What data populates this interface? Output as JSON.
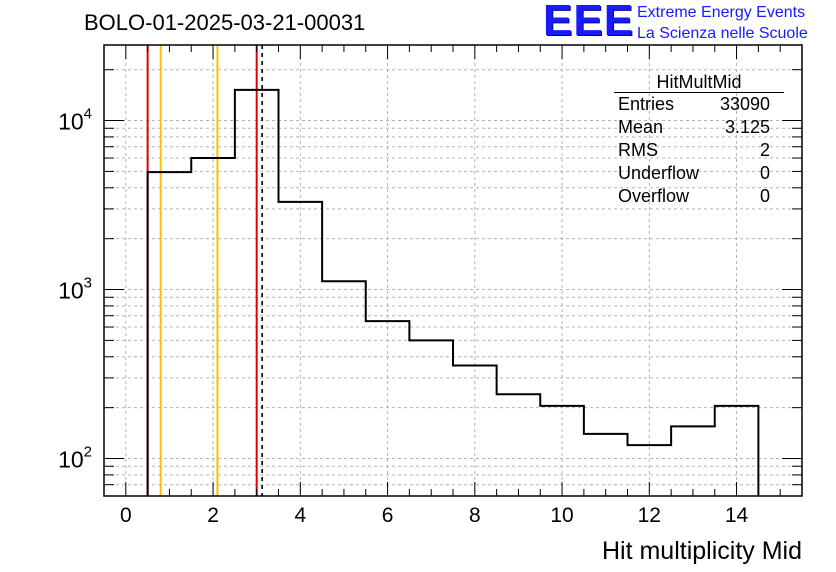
{
  "header": {
    "run_title": "BOLO-01-2025-03-21-00031"
  },
  "logo": {
    "mark": "EEE",
    "line1": "Extreme Energy Events",
    "line2": "La Scienza nelle Scuole",
    "color": "#1a1aff"
  },
  "stats": {
    "title": "HitMultMid",
    "rows": [
      {
        "label": "Entries",
        "value": "33090"
      },
      {
        "label": "Mean",
        "value": "3.125"
      },
      {
        "label": "RMS",
        "value": "2"
      },
      {
        "label": "Underflow",
        "value": "0"
      },
      {
        "label": "Overflow",
        "value": "0"
      }
    ]
  },
  "chart_data": {
    "type": "bar",
    "histogram": true,
    "title": "BOLO-01-2025-03-21-00031",
    "xlabel": "Hit multiplicity Mid",
    "ylabel": "",
    "xlim": [
      -0.5,
      15.5
    ],
    "ylim_log": [
      60,
      28000
    ],
    "yscale": "log",
    "grid": true,
    "bin_edges": [
      0.5,
      1.5,
      2.5,
      3.5,
      4.5,
      5.5,
      6.5,
      7.5,
      8.5,
      9.5,
      10.5,
      11.5,
      12.5,
      13.5,
      14.5
    ],
    "values": [
      4950,
      6000,
      15200,
      3300,
      1120,
      650,
      500,
      355,
      240,
      205,
      140,
      120,
      155,
      205
    ],
    "x_ticks": [
      0,
      2,
      4,
      6,
      8,
      10,
      12,
      14
    ],
    "y_ticks": [
      {
        "value": 100,
        "base": "10",
        "exp": "2"
      },
      {
        "value": 1000,
        "base": "10",
        "exp": "3"
      },
      {
        "value": 10000,
        "base": "10",
        "exp": "4"
      }
    ],
    "markers": [
      {
        "x": 0.5,
        "color": "#e00000",
        "style": "solid"
      },
      {
        "x": 0.8,
        "color": "#ffbf00",
        "style": "solid"
      },
      {
        "x": 2.1,
        "color": "#ffbf00",
        "style": "solid"
      },
      {
        "x": 3.0,
        "color": "#e00000",
        "style": "solid"
      },
      {
        "x": 3.125,
        "color": "#000000",
        "style": "dashed"
      }
    ],
    "line_color": "#000000",
    "grid_color": "#b4b4b4"
  }
}
